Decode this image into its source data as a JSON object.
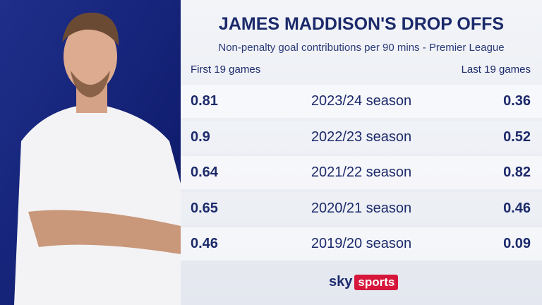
{
  "header": {
    "title": "JAMES MADDISON'S DROP OFFS",
    "subtitle": "Non-penalty goal contributions per 90 mins - Premier League"
  },
  "table": {
    "columns": [
      "First 19 games",
      "Last 19 games"
    ],
    "rows": [
      [
        0.81,
        "2023/24 season",
        0.36
      ],
      [
        0.9,
        "2022/23 season",
        0.52
      ],
      [
        0.64,
        "2021/22 season",
        0.82
      ],
      [
        0.65,
        "2020/21 season",
        0.46
      ],
      [
        0.46,
        "2019/20 season",
        0.09
      ]
    ]
  },
  "footer": {
    "logo": [
      "sky",
      "sports"
    ]
  }
}
